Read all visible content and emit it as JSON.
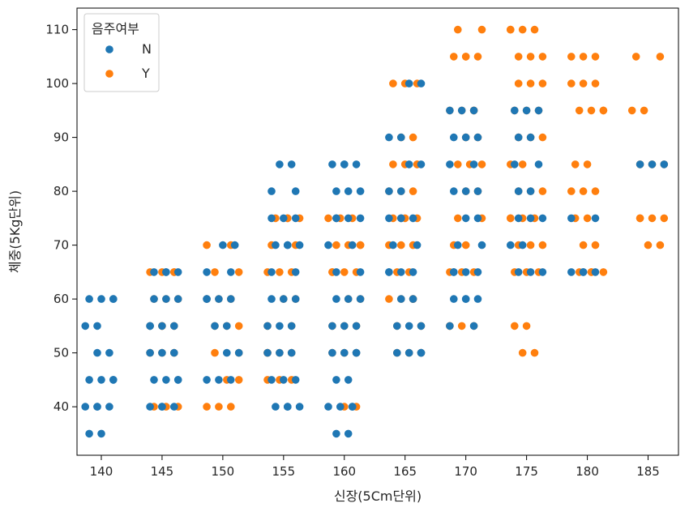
{
  "chart_data": {
    "type": "scatter",
    "title": "",
    "xlabel": "신장(5Cm단위)",
    "ylabel": "체중(5Kg단위)",
    "xlim": [
      138,
      187.5
    ],
    "ylim": [
      31,
      114
    ],
    "xticks": [
      140,
      145,
      150,
      155,
      160,
      165,
      170,
      175,
      180,
      185
    ],
    "yticks": [
      40,
      50,
      60,
      70,
      80,
      90,
      100,
      110
    ],
    "grid": false,
    "legend": {
      "title": "음주여부",
      "placement": "top-left"
    },
    "series": [
      {
        "name": "N",
        "color": "#1f77b4",
        "points": [
          [
            140,
            35
          ],
          [
            160,
            35
          ],
          [
            140,
            40
          ],
          [
            145,
            40
          ],
          [
            155,
            40
          ],
          [
            160,
            40
          ],
          [
            140,
            45
          ],
          [
            145,
            45
          ],
          [
            150,
            45
          ],
          [
            155,
            45
          ],
          [
            160,
            45
          ],
          [
            140,
            50
          ],
          [
            145,
            50
          ],
          [
            150,
            50
          ],
          [
            155,
            50
          ],
          [
            160,
            50
          ],
          [
            165,
            50
          ],
          [
            140,
            55
          ],
          [
            145,
            55
          ],
          [
            150,
            55
          ],
          [
            155,
            55
          ],
          [
            160,
            55
          ],
          [
            165,
            55
          ],
          [
            170,
            55
          ],
          [
            140,
            60
          ],
          [
            145,
            60
          ],
          [
            150,
            60
          ],
          [
            155,
            60
          ],
          [
            160,
            60
          ],
          [
            165,
            60
          ],
          [
            170,
            60
          ],
          [
            145,
            65
          ],
          [
            150,
            65
          ],
          [
            155,
            65
          ],
          [
            160,
            65
          ],
          [
            165,
            65
          ],
          [
            170,
            65
          ],
          [
            175,
            65
          ],
          [
            180,
            65
          ],
          [
            150,
            70
          ],
          [
            155,
            70
          ],
          [
            160,
            70
          ],
          [
            165,
            70
          ],
          [
            170,
            70
          ],
          [
            175,
            70
          ],
          [
            155,
            75
          ],
          [
            160,
            75
          ],
          [
            165,
            75
          ],
          [
            170,
            75
          ],
          [
            175,
            75
          ],
          [
            180,
            75
          ],
          [
            155,
            80
          ],
          [
            160,
            80
          ],
          [
            165,
            80
          ],
          [
            170,
            80
          ],
          [
            175,
            80
          ],
          [
            155,
            85
          ],
          [
            160,
            85
          ],
          [
            165,
            85
          ],
          [
            170,
            85
          ],
          [
            175,
            85
          ],
          [
            185,
            85
          ],
          [
            165,
            90
          ],
          [
            170,
            90
          ],
          [
            175,
            90
          ],
          [
            170,
            95
          ],
          [
            175,
            95
          ],
          [
            165,
            100
          ]
        ]
      },
      {
        "name": "Y",
        "color": "#ff7f0e",
        "points": [
          [
            145,
            40
          ],
          [
            150,
            40
          ],
          [
            160,
            40
          ],
          [
            150,
            45
          ],
          [
            155,
            45
          ],
          [
            145,
            50
          ],
          [
            150,
            50
          ],
          [
            155,
            50
          ],
          [
            160,
            50
          ],
          [
            165,
            50
          ],
          [
            175,
            50
          ],
          [
            145,
            55
          ],
          [
            150,
            55
          ],
          [
            155,
            55
          ],
          [
            160,
            55
          ],
          [
            165,
            55
          ],
          [
            170,
            55
          ],
          [
            175,
            55
          ],
          [
            145,
            60
          ],
          [
            150,
            60
          ],
          [
            155,
            60
          ],
          [
            160,
            60
          ],
          [
            165,
            60
          ],
          [
            145,
            65
          ],
          [
            150,
            65
          ],
          [
            155,
            65
          ],
          [
            160,
            65
          ],
          [
            165,
            65
          ],
          [
            170,
            65
          ],
          [
            175,
            65
          ],
          [
            180,
            65
          ],
          [
            150,
            70
          ],
          [
            155,
            70
          ],
          [
            160,
            70
          ],
          [
            165,
            70
          ],
          [
            170,
            70
          ],
          [
            175,
            70
          ],
          [
            180,
            70
          ],
          [
            185,
            70
          ],
          [
            155,
            75
          ],
          [
            160,
            75
          ],
          [
            165,
            75
          ],
          [
            170,
            75
          ],
          [
            175,
            75
          ],
          [
            180,
            75
          ],
          [
            185,
            75
          ],
          [
            165,
            80
          ],
          [
            170,
            80
          ],
          [
            175,
            80
          ],
          [
            180,
            80
          ],
          [
            165,
            85
          ],
          [
            170,
            85
          ],
          [
            175,
            85
          ],
          [
            180,
            85
          ],
          [
            185,
            85
          ],
          [
            165,
            90
          ],
          [
            170,
            90
          ],
          [
            175,
            90
          ],
          [
            170,
            95
          ],
          [
            175,
            95
          ],
          [
            180,
            95
          ],
          [
            185,
            95
          ],
          [
            165,
            100
          ],
          [
            175,
            100
          ],
          [
            180,
            100
          ],
          [
            170,
            105
          ],
          [
            175,
            105
          ],
          [
            180,
            105
          ],
          [
            185,
            105
          ],
          [
            170,
            110
          ],
          [
            175,
            110
          ]
        ]
      }
    ]
  }
}
